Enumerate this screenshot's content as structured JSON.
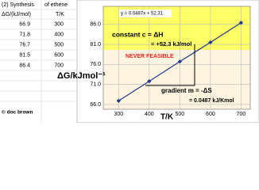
{
  "table": {
    "title": [
      "(2) Synthesis",
      "of ethene"
    ],
    "header": [
      "ΔG/(kJ/mol)",
      "T/K"
    ],
    "rows": [
      [
        "66.9",
        "300"
      ],
      [
        "71.8",
        "400"
      ],
      [
        "76.7",
        "500"
      ],
      [
        "81.5",
        "600"
      ],
      [
        "86.4",
        "700"
      ]
    ]
  },
  "credit": "© doc brown",
  "chart_data": {
    "type": "line",
    "x": [
      300,
      400,
      500,
      600,
      700
    ],
    "series": [
      {
        "name": "ΔG",
        "color": "#1f3a8a",
        "values": [
          66.9,
          71.8,
          76.7,
          81.5,
          86.4
        ]
      }
    ],
    "xlim": [
      250,
      730
    ],
    "xticks": [
      300,
      400,
      500,
      600,
      700
    ],
    "ylim": [
      64.8,
      90.5
    ],
    "yticks": [
      {
        "value": 66,
        "label": "66.0"
      },
      {
        "value": 71,
        "label": "71.0"
      },
      {
        "value": 76,
        "label": "76.0"
      },
      {
        "value": 81,
        "label": "81.0"
      },
      {
        "value": 86,
        "label": "86.0"
      }
    ],
    "grid": true,
    "x_label": "T/K",
    "y_label": "ΔG/kJmol⁻¹",
    "annotations": [
      "y = 0.0487x + 52.31",
      "constant c = ΔH",
      "= +52.3 kJ/mol",
      "NEVER FEASIBLE",
      "gradient m = -ΔS",
      "= 0.0487 kJ/Kmol"
    ]
  }
}
